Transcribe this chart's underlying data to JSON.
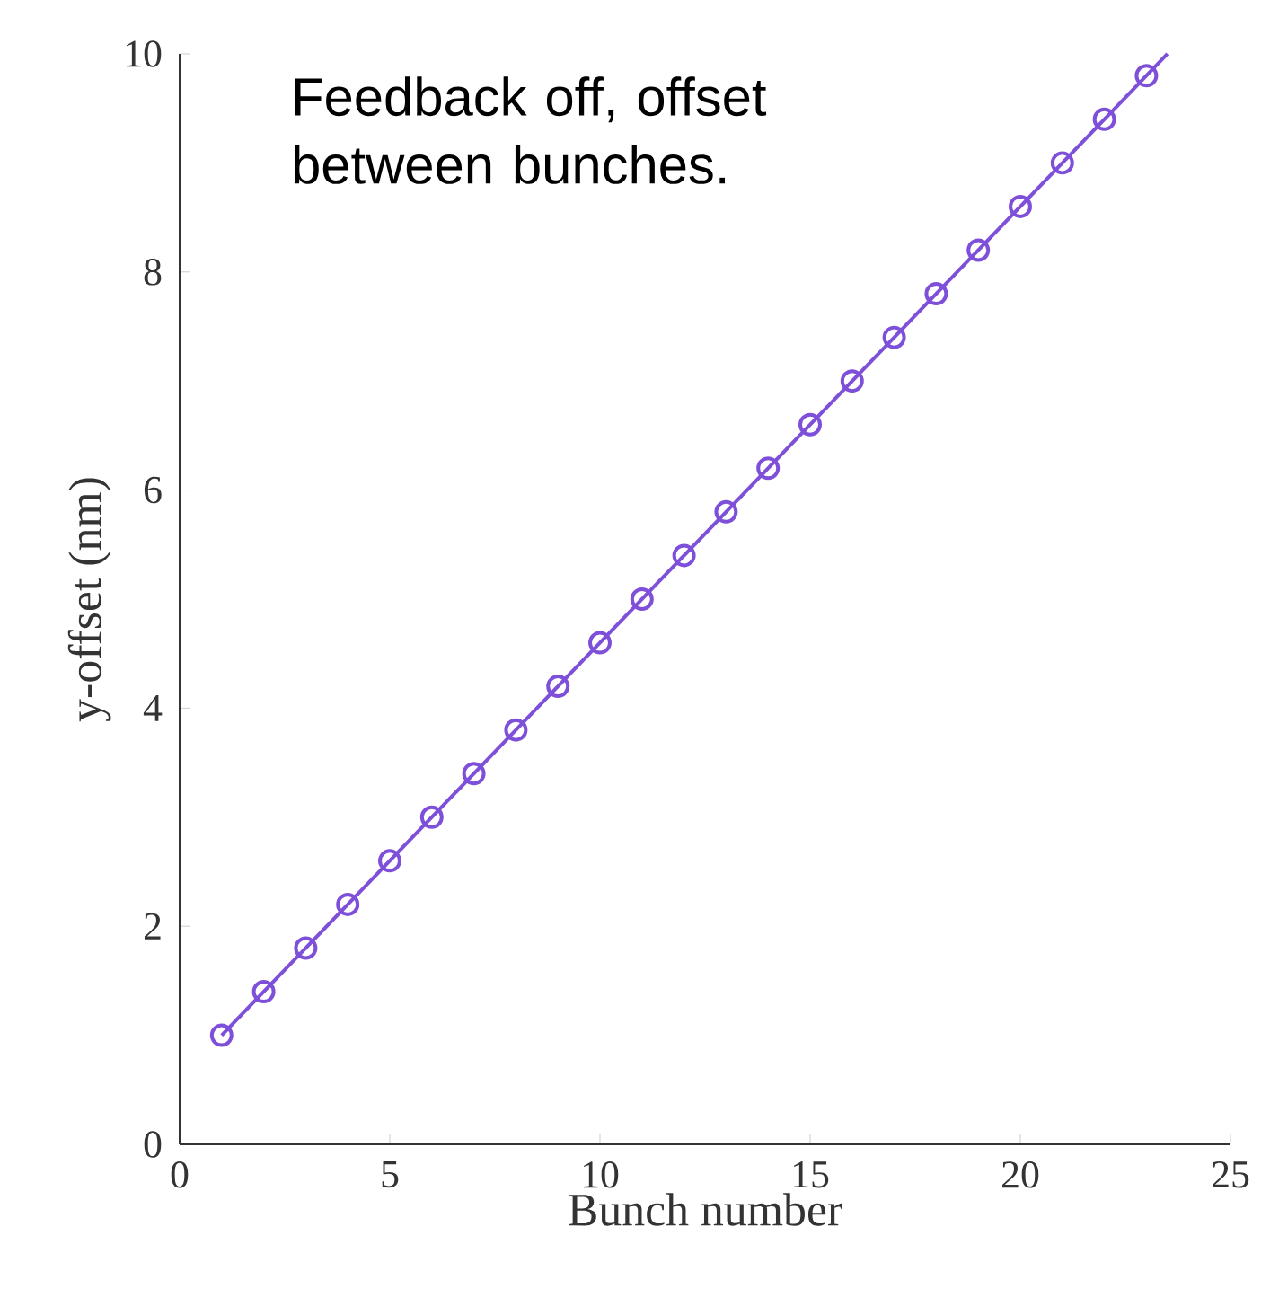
{
  "chart_data": {
    "type": "line",
    "xlabel": "Bunch number",
    "ylabel": "y-offset (nm)",
    "annotations": [
      "Feedback off, offset between bunches."
    ],
    "xlim": [
      0,
      25
    ],
    "ylim": [
      0,
      10
    ],
    "xticks": [
      0,
      5,
      10,
      15,
      20,
      25
    ],
    "yticks": [
      0,
      2,
      4,
      6,
      8,
      10
    ],
    "grid": false,
    "series": [
      {
        "type": "scatter",
        "marker": "circle",
        "color": "#7e4fd8",
        "x": [
          1,
          2,
          3,
          4,
          5,
          6,
          7,
          8,
          9,
          10,
          11,
          12,
          13,
          14,
          15,
          16,
          17,
          18,
          19,
          20,
          21,
          22,
          23
        ],
        "values": [
          1.0,
          1.4,
          1.8,
          2.2,
          2.6,
          3.0,
          3.4,
          3.8,
          4.2,
          4.6,
          5.0,
          5.4,
          5.8,
          6.2,
          6.6,
          7.0,
          7.4,
          7.8,
          8.2,
          8.6,
          9.0,
          9.4,
          9.8
        ]
      },
      {
        "line_style": "solid",
        "color": "#7e4fd8",
        "x": [
          1,
          23.5
        ],
        "values": [
          1.0,
          10.0
        ]
      }
    ]
  }
}
